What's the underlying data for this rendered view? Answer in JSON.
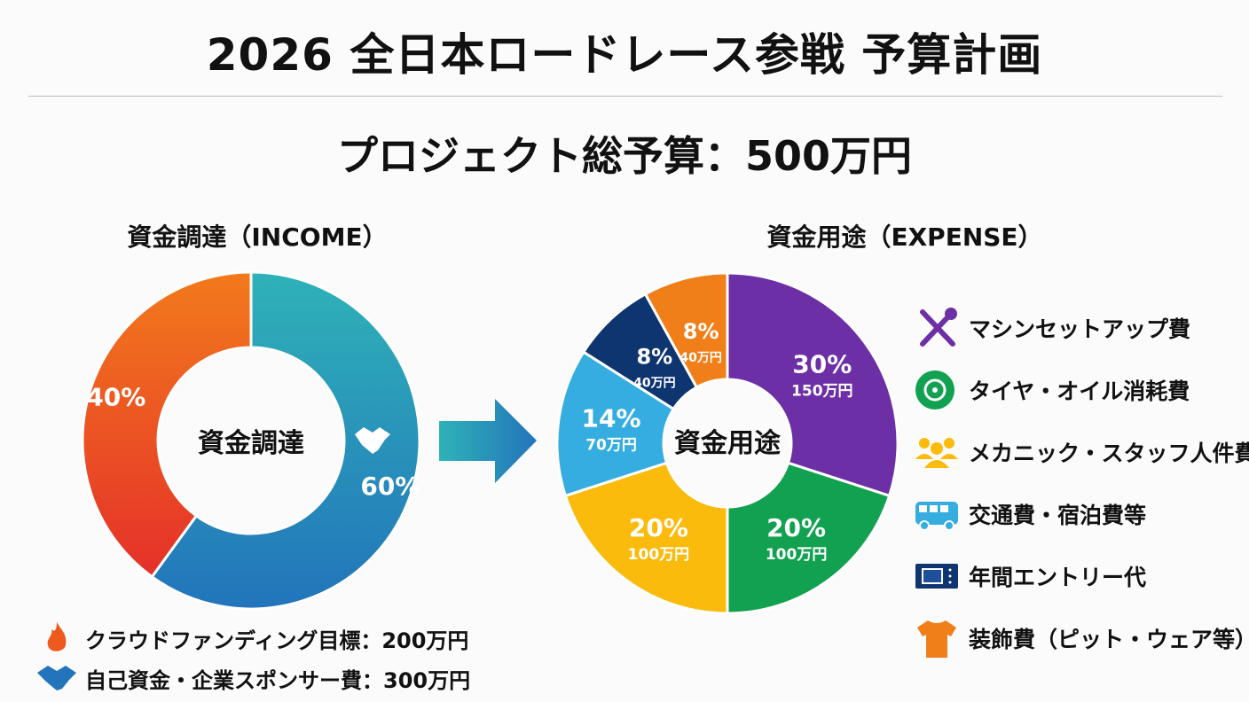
{
  "title": "2026 全日本ロードレース参戦 予算計画",
  "total_budget": "プロジェクト総予算：500万円",
  "chart_data": [
    {
      "type": "pie",
      "title": "資金調達（INCOME）",
      "center_label": "資金調達",
      "slices": [
        {
          "label": "自己資金・企業スポンサー費",
          "value": 60,
          "pct_label": "60%",
          "amount": 300,
          "colors": [
            "#2fb2b8",
            "#2274bb"
          ]
        },
        {
          "label": "クラウドファンディング目標",
          "value": 40,
          "pct_label": "40%",
          "amount": 200,
          "colors": [
            "#f27a1c",
            "#e5302a"
          ]
        }
      ],
      "unit": "万円"
    },
    {
      "type": "pie",
      "title": "資金用途（EXPENSE）",
      "center_label": "資金用途",
      "slices": [
        {
          "label": "マシンセットアップ費",
          "value": 30,
          "pct_label": "30%",
          "amount_label": "150万円",
          "color": "#6d2fa6",
          "icon": "wrench-screwdriver"
        },
        {
          "label": "タイヤ・オイル消耗費",
          "value": 20,
          "pct_label": "20%",
          "amount_label": "100万円",
          "color": "#12a150",
          "icon": "tire"
        },
        {
          "label": "メカニック・スタッフ人件費",
          "value": 20,
          "pct_label": "20%",
          "amount_label": "100万円",
          "color": "#fbbb0c",
          "icon": "people"
        },
        {
          "label": "交通費・宿泊費等",
          "value": 14,
          "pct_label": "14%",
          "amount_label": "70万円",
          "color": "#35ade0",
          "icon": "bus"
        },
        {
          "label": "年間エントリー代",
          "value": 8,
          "pct_label": "8%",
          "amount_label": "40万円",
          "color": "#0e3570",
          "icon": "ticket"
        },
        {
          "label": "装飾費（ピット・ウェア等）",
          "value": 8,
          "pct_label": "8%",
          "amount_label": "40万円",
          "color": "#f07f1a",
          "icon": "tshirt"
        }
      ]
    }
  ],
  "income_legend": [
    {
      "text": "クラウドファンディング目標：200万円",
      "icon": "flame"
    },
    {
      "text": "自己資金・企業スポンサー費：300万円",
      "icon": "handshake"
    }
  ]
}
